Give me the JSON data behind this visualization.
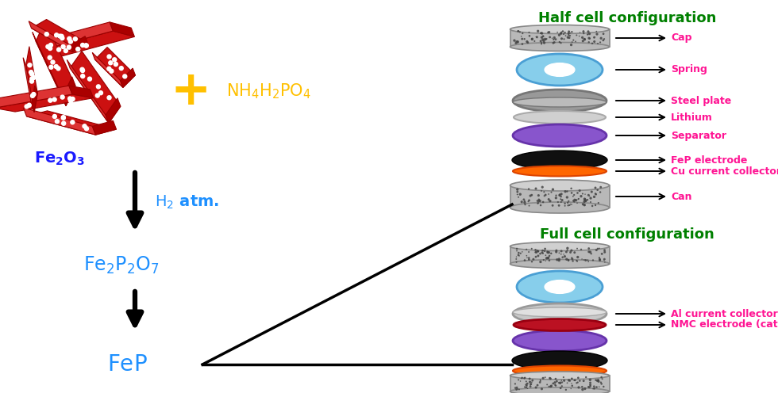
{
  "bg_color": "#ffffff",
  "title_color": "#008000",
  "label_color": "#ff1493",
  "plus_color": "#ffc000",
  "blue_color": "#1e90ff",
  "figsize": [
    9.8,
    4.96
  ],
  "dpi": 100,
  "half_cell_title": "Half cell configuration",
  "full_cell_title": "Full cell configuration",
  "half_cell_labels": [
    "Cap",
    "Spring",
    "Steel plate",
    "Lithium",
    "Separator",
    "FeP electrode",
    "Cu current collector",
    "Can"
  ],
  "full_cell_labels": [
    "Al current collector",
    "NMC electrode (cathode)"
  ]
}
